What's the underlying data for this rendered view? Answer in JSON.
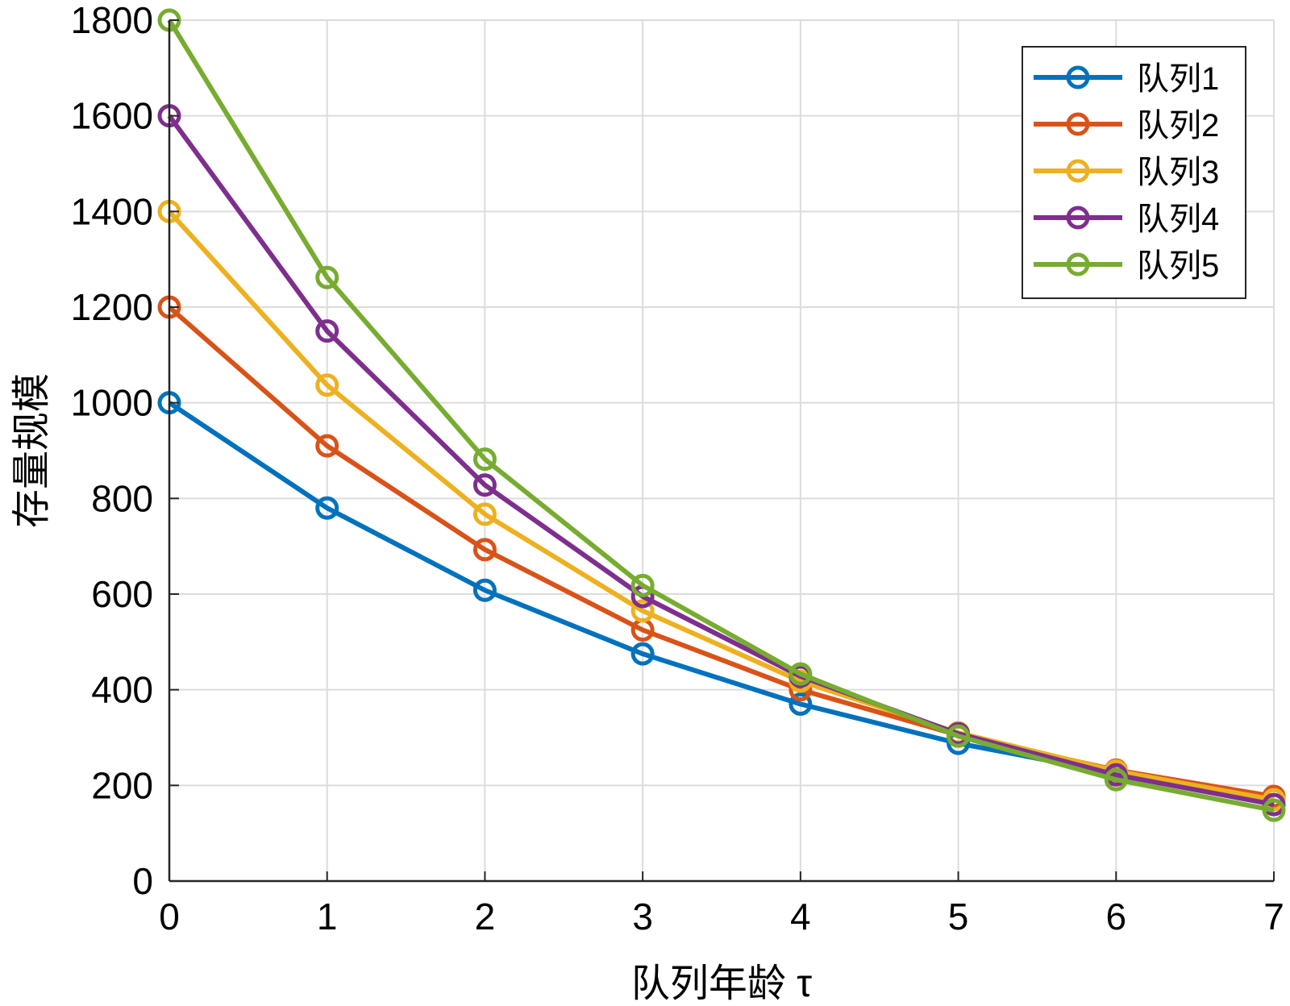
{
  "chart_data": {
    "type": "line",
    "xlabel": "队列年龄 τ",
    "ylabel": "存量规模",
    "xlim": [
      0,
      7
    ],
    "ylim": [
      0,
      1800
    ],
    "x_ticks": [
      "0",
      "1",
      "2",
      "3",
      "4",
      "5",
      "6",
      "7"
    ],
    "y_ticks": [
      "0",
      "200",
      "400",
      "600",
      "800",
      "1000",
      "1200",
      "1400",
      "1600",
      "1800"
    ],
    "grid": true,
    "legend_position": "top-right",
    "marker": "circle",
    "x": [
      0,
      1,
      2,
      3,
      4,
      5,
      6,
      7
    ],
    "series": [
      {
        "name": "队列1",
        "color": "#0072BD",
        "values": [
          1000,
          780,
          608,
          475,
          370,
          288,
          225,
          175
        ]
      },
      {
        "name": "队列2",
        "color": "#D95319",
        "values": [
          1200,
          910,
          693,
          525,
          400,
          305,
          232,
          177
        ]
      },
      {
        "name": "队列3",
        "color": "#EDB120",
        "values": [
          1400,
          1037,
          767,
          565,
          418,
          310,
          230,
          170
        ]
      },
      {
        "name": "队列4",
        "color": "#7E2F8E",
        "values": [
          1600,
          1150,
          828,
          595,
          428,
          308,
          222,
          160
        ]
      },
      {
        "name": "队列5",
        "color": "#77AC30",
        "values": [
          1800,
          1262,
          882,
          618,
          433,
          303,
          212,
          148
        ]
      }
    ]
  }
}
